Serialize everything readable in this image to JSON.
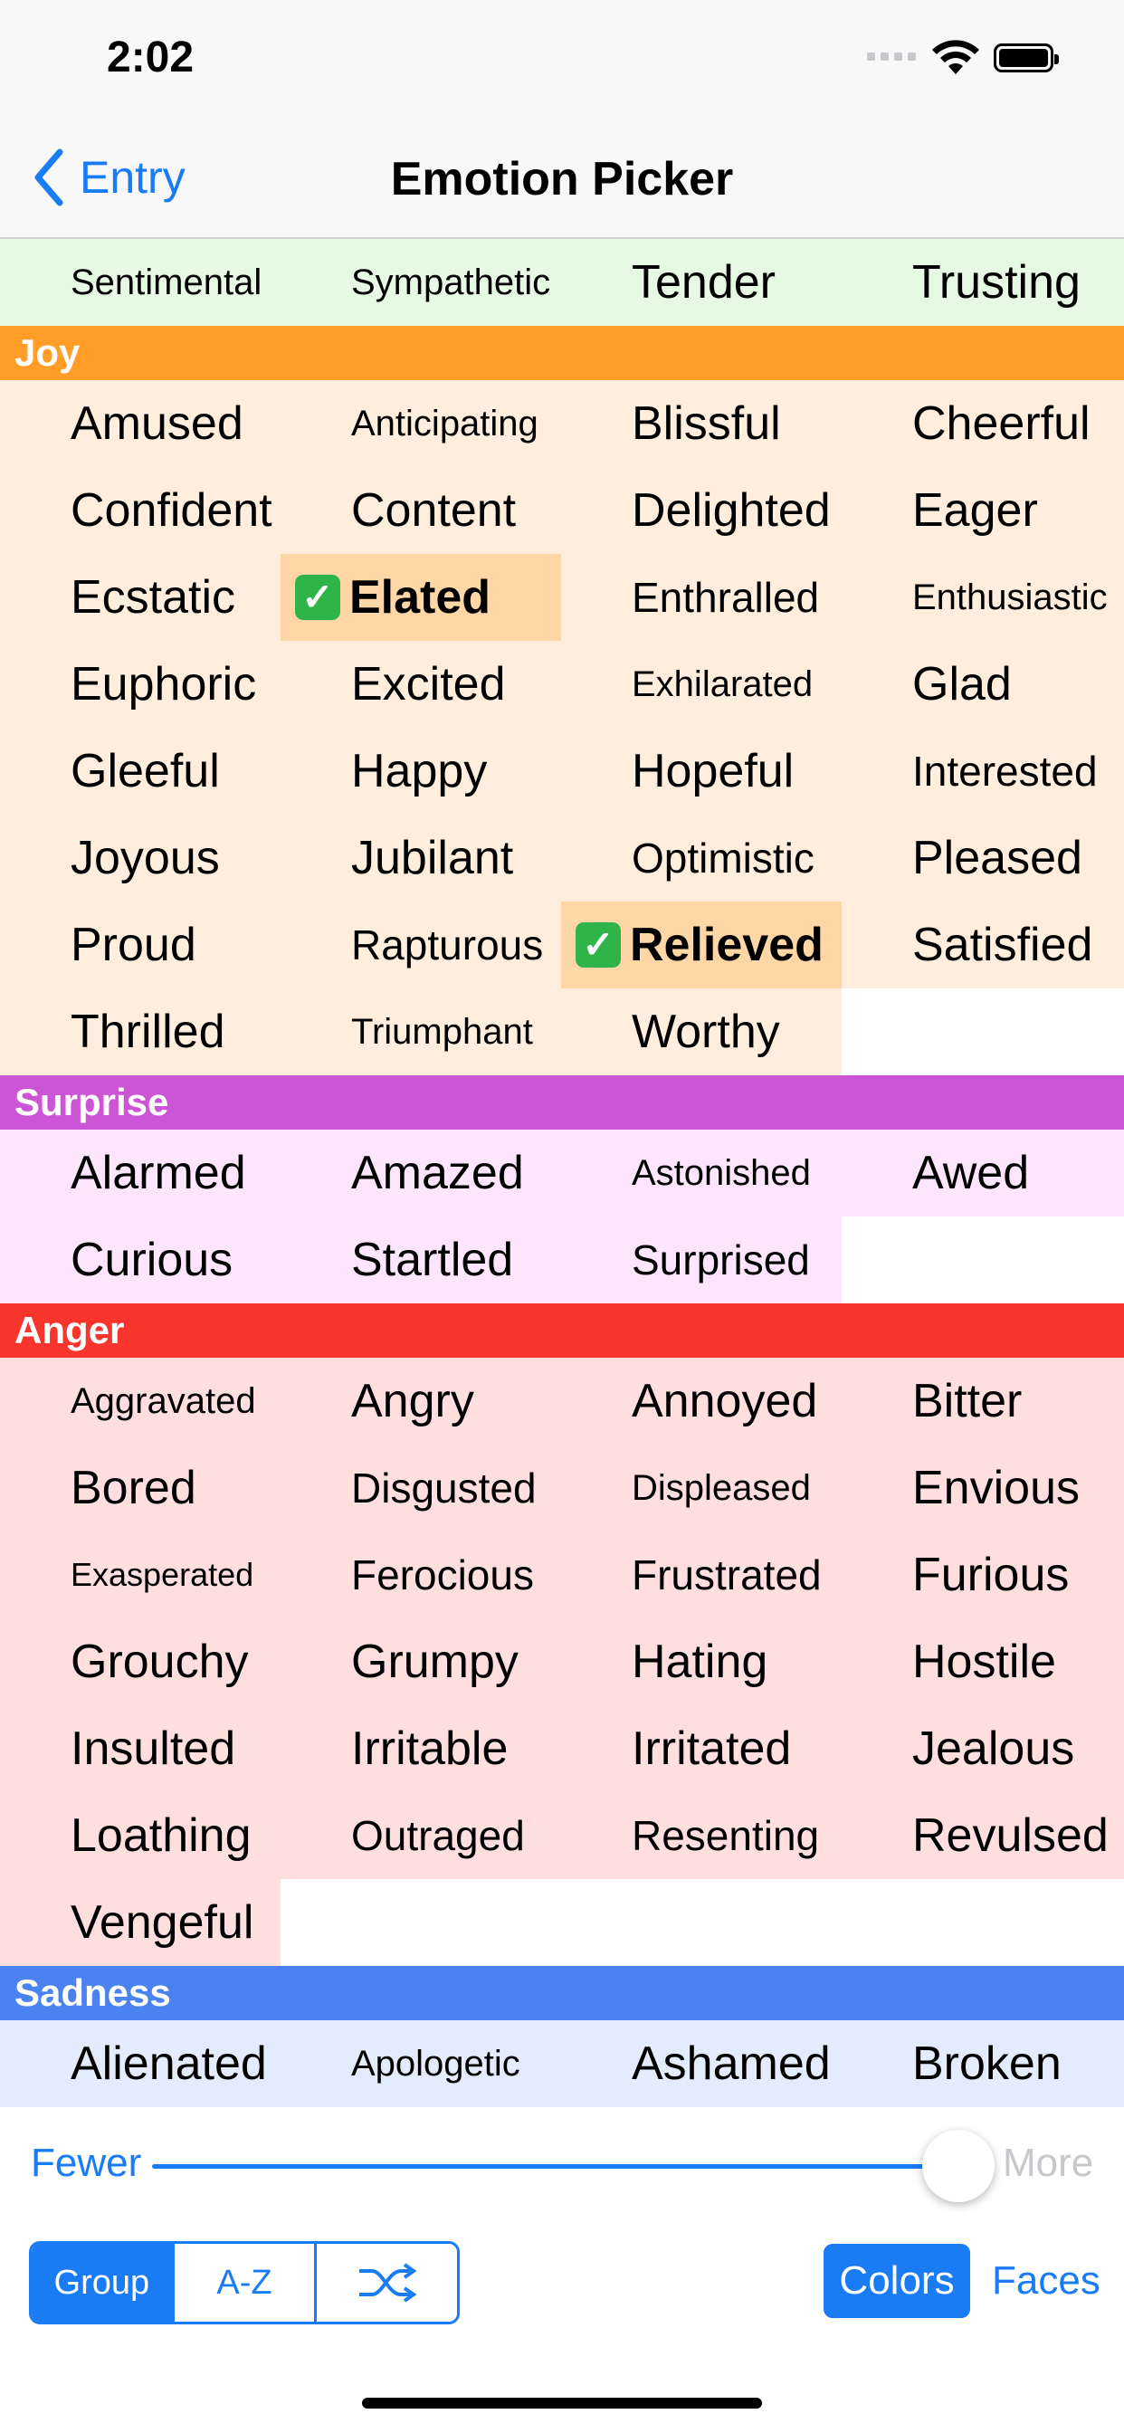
{
  "status": {
    "time": "2:02"
  },
  "nav": {
    "back_label": "Entry",
    "title": "Emotion Picker"
  },
  "colors": {
    "accent": "#1a7cf5",
    "love": {
      "header": "#8fd98f",
      "cell": "#e6f9e2"
    },
    "joy": {
      "header": "#ff9d26",
      "cell": "#ffeedd",
      "selected": "#ffd7a6"
    },
    "surprise": {
      "header": "#cc55d6",
      "cell": "#fde6fd"
    },
    "anger": {
      "header": "#f8352c",
      "cell": "#ffdede"
    },
    "sadness": {
      "header": "#4a82ef",
      "cell": "#e2ecfd"
    }
  },
  "sections": [
    {
      "key": "love",
      "title": "",
      "header_visible": false,
      "items": [
        {
          "label": "Sentimental",
          "size": "small"
        },
        {
          "label": "Sympathetic",
          "size": "small"
        },
        {
          "label": "Tender",
          "size": "large"
        },
        {
          "label": "Trusting",
          "size": "large"
        }
      ]
    },
    {
      "key": "joy",
      "title": "Joy",
      "header_visible": true,
      "items": [
        {
          "label": "Amused",
          "size": "large"
        },
        {
          "label": "Anticipating",
          "size": "small"
        },
        {
          "label": "Blissful",
          "size": "large"
        },
        {
          "label": "Cheerful",
          "size": "large"
        },
        {
          "label": "Confident",
          "size": "large"
        },
        {
          "label": "Content",
          "size": "large"
        },
        {
          "label": "Delighted",
          "size": "large"
        },
        {
          "label": "Eager",
          "size": "large"
        },
        {
          "label": "Ecstatic",
          "size": "large"
        },
        {
          "label": "Elated",
          "size": "large",
          "selected": true
        },
        {
          "label": "Enthralled",
          "size": "medium"
        },
        {
          "label": "Enthusiastic",
          "size": "small"
        },
        {
          "label": "Euphoric",
          "size": "large"
        },
        {
          "label": "Excited",
          "size": "large"
        },
        {
          "label": "Exhilarated",
          "size": "small"
        },
        {
          "label": "Glad",
          "size": "large"
        },
        {
          "label": "Gleeful",
          "size": "large"
        },
        {
          "label": "Happy",
          "size": "large"
        },
        {
          "label": "Hopeful",
          "size": "large"
        },
        {
          "label": "Interested",
          "size": "medium"
        },
        {
          "label": "Joyous",
          "size": "large"
        },
        {
          "label": "Jubilant",
          "size": "large"
        },
        {
          "label": "Optimistic",
          "size": "medium"
        },
        {
          "label": "Pleased",
          "size": "large"
        },
        {
          "label": "Proud",
          "size": "large"
        },
        {
          "label": "Rapturous",
          "size": "medium"
        },
        {
          "label": "Relieved",
          "size": "large",
          "selected": true
        },
        {
          "label": "Satisfied",
          "size": "large"
        },
        {
          "label": "Thrilled",
          "size": "large"
        },
        {
          "label": "Triumphant",
          "size": "small"
        },
        {
          "label": "Worthy",
          "size": "large"
        }
      ]
    },
    {
      "key": "surprise",
      "title": "Surprise",
      "header_visible": true,
      "items": [
        {
          "label": "Alarmed",
          "size": "large"
        },
        {
          "label": "Amazed",
          "size": "large"
        },
        {
          "label": "Astonished",
          "size": "small"
        },
        {
          "label": "Awed",
          "size": "large"
        },
        {
          "label": "Curious",
          "size": "large"
        },
        {
          "label": "Startled",
          "size": "large"
        },
        {
          "label": "Surprised",
          "size": "medium"
        }
      ]
    },
    {
      "key": "anger",
      "title": "Anger",
      "header_visible": true,
      "items": [
        {
          "label": "Aggravated",
          "size": "small"
        },
        {
          "label": "Angry",
          "size": "large"
        },
        {
          "label": "Annoyed",
          "size": "large"
        },
        {
          "label": "Bitter",
          "size": "large"
        },
        {
          "label": "Bored",
          "size": "large"
        },
        {
          "label": "Disgusted",
          "size": "medium"
        },
        {
          "label": "Displeased",
          "size": "small"
        },
        {
          "label": "Envious",
          "size": "large"
        },
        {
          "label": "Exasperated",
          "size": "tiny"
        },
        {
          "label": "Ferocious",
          "size": "medium"
        },
        {
          "label": "Frustrated",
          "size": "medium"
        },
        {
          "label": "Furious",
          "size": "large"
        },
        {
          "label": "Grouchy",
          "size": "large"
        },
        {
          "label": "Grumpy",
          "size": "large"
        },
        {
          "label": "Hating",
          "size": "large"
        },
        {
          "label": "Hostile",
          "size": "large"
        },
        {
          "label": "Insulted",
          "size": "large"
        },
        {
          "label": "Irritable",
          "size": "large"
        },
        {
          "label": "Irritated",
          "size": "large"
        },
        {
          "label": "Jealous",
          "size": "large"
        },
        {
          "label": "Loathing",
          "size": "large"
        },
        {
          "label": "Outraged",
          "size": "medium"
        },
        {
          "label": "Resenting",
          "size": "medium"
        },
        {
          "label": "Revulsed",
          "size": "large"
        },
        {
          "label": "Vengeful",
          "size": "large"
        }
      ]
    },
    {
      "key": "sadness",
      "title": "Sadness",
      "header_visible": true,
      "items": [
        {
          "label": "Alienated",
          "size": "large"
        },
        {
          "label": "Apologetic",
          "size": "small"
        },
        {
          "label": "Ashamed",
          "size": "large"
        },
        {
          "label": "Broken",
          "size": "large"
        }
      ]
    }
  ],
  "slider": {
    "min_label": "Fewer",
    "max_label": "More",
    "value": 1.0
  },
  "sort_options": [
    {
      "label": "Group",
      "selected": true
    },
    {
      "label": "A-Z",
      "selected": false
    },
    {
      "label": "",
      "icon": "shuffle-icon",
      "selected": false
    }
  ],
  "display_options": [
    {
      "label": "Colors",
      "selected": true
    },
    {
      "label": "Faces",
      "selected": false
    }
  ]
}
